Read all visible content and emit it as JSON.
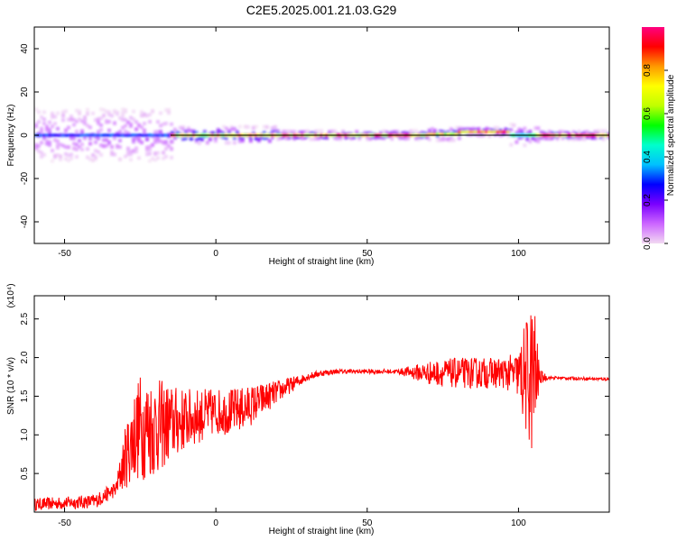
{
  "title": "C2E5.2025.001.21.03.G29",
  "chart_data": [
    {
      "type": "heatmap",
      "title": "C2E5.2025.001.21.03.G29",
      "xlabel": "Height of straight line (km)",
      "ylabel": "Frequency (Hz)",
      "xlim": [
        -60,
        130
      ],
      "ylim": [
        -50,
        50
      ],
      "x_ticks": [
        -50,
        0,
        50,
        100
      ],
      "y_ticks": [
        40,
        20,
        0,
        -20,
        -40
      ],
      "colorbar": {
        "label": "Normalized spectral amplitude",
        "range": [
          0,
          1
        ],
        "ticks": [
          "0.0",
          "0.2",
          "0.4",
          "0.6",
          "0.8"
        ],
        "colors": [
          "#f2d9f2",
          "#cc66ff",
          "#7a00ff",
          "#0000ff",
          "#00c0ff",
          "#00ffcc",
          "#00ff00",
          "#c0ff00",
          "#ffff00",
          "#ff9900",
          "#ff0000",
          "#ff0080"
        ]
      },
      "reference_line": {
        "y": 0
      },
      "segments": [
        {
          "x0": -60,
          "x1": -15,
          "y": 0,
          "amp": 0.3,
          "spread": 12
        },
        {
          "x0": -15,
          "x1": 20,
          "y": 0,
          "amp": 0.8,
          "spread": 4
        },
        {
          "x0": 20,
          "x1": 70,
          "y": 0,
          "amp": 0.85,
          "spread": 2
        },
        {
          "x0": 70,
          "x1": 80,
          "y": 0.5,
          "amp": 0.75,
          "spread": 3
        },
        {
          "x0": 80,
          "x1": 97,
          "y": 1.5,
          "amp": 0.9,
          "spread": 2
        },
        {
          "x0": 97,
          "x1": 106,
          "y": 0,
          "amp": 0.5,
          "spread": 5
        },
        {
          "x0": 106,
          "x1": 130,
          "y": 0,
          "amp": 0.9,
          "spread": 2
        }
      ]
    },
    {
      "type": "line",
      "xlabel": "Height of straight line (km)",
      "ylabel": "SNR (10 * v/v)",
      "y_multiplier": "(x10⁴)",
      "xlim": [
        -60,
        130
      ],
      "ylim": [
        0.0,
        2.8
      ],
      "x_ticks": [
        -50,
        0,
        50,
        100
      ],
      "y_ticks": [
        "0.5",
        "1.0",
        "1.5",
        "2.0",
        "2.5"
      ],
      "series": [
        {
          "color": "#ff0000",
          "envelope_x": [
            -60,
            -50,
            -40,
            -33,
            -30,
            -27,
            -25,
            -20,
            -15,
            -10,
            -5,
            0,
            5,
            10,
            15,
            20,
            25,
            30,
            35,
            40,
            50,
            60,
            70,
            75,
            80,
            90,
            95,
            100,
            102,
            105,
            107,
            110,
            120,
            130
          ],
          "envelope_y": [
            0.1,
            0.12,
            0.14,
            0.3,
            0.7,
            1.0,
            1.1,
            1.1,
            1.15,
            1.2,
            1.25,
            1.3,
            1.3,
            1.35,
            1.45,
            1.55,
            1.65,
            1.75,
            1.8,
            1.82,
            1.82,
            1.82,
            1.8,
            1.8,
            1.8,
            1.8,
            1.8,
            1.78,
            1.75,
            1.75,
            1.75,
            1.74,
            1.73,
            1.72
          ],
          "noise_x": [
            -60,
            -50,
            -33,
            -30,
            -27,
            -25,
            -20,
            -15,
            -10,
            -5,
            0,
            5,
            10,
            15,
            20,
            25,
            30,
            40,
            60,
            70,
            80,
            90,
            95,
            100,
            102,
            105,
            107,
            110,
            130
          ],
          "noise_y": [
            0.08,
            0.08,
            0.1,
            0.4,
            0.6,
            0.7,
            0.65,
            0.5,
            0.4,
            0.35,
            0.3,
            0.3,
            0.28,
            0.22,
            0.15,
            0.1,
            0.05,
            0.03,
            0.03,
            0.15,
            0.2,
            0.2,
            0.2,
            0.3,
            0.7,
            1.1,
            0.1,
            0.02,
            0.02
          ]
        }
      ]
    }
  ]
}
